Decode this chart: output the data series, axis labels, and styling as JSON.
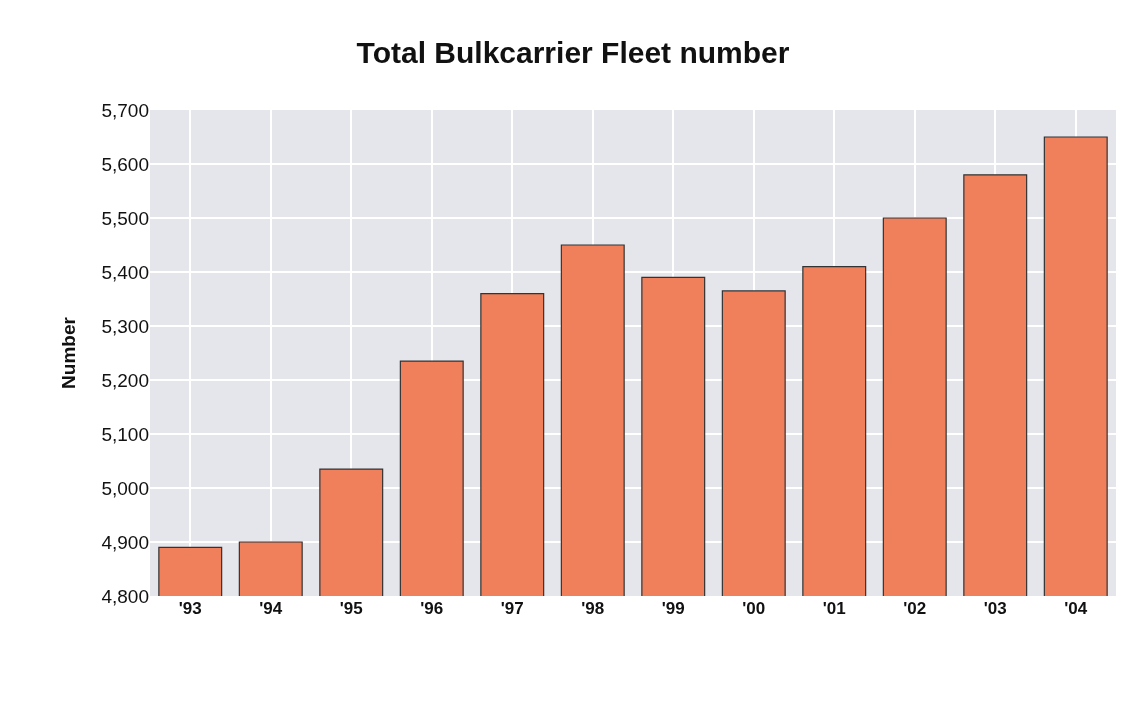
{
  "chart_data": {
    "type": "bar",
    "title": "Total Bulkcarrier Fleet number",
    "ylabel": "Number",
    "categories": [
      "'93",
      "'94",
      "'95",
      "'96",
      "'97",
      "'98",
      "'99",
      "'00",
      "'01",
      "'02",
      "'03",
      "'04"
    ],
    "values": [
      4890,
      4900,
      5035,
      5235,
      5360,
      5450,
      5390,
      5365,
      5410,
      5500,
      5580,
      5650
    ],
    "color": "#f0805c",
    "ylim": [
      4800,
      5700
    ],
    "yticks": [
      {
        "value": 4800,
        "label": "4,800"
      },
      {
        "value": 4900,
        "label": "4,900"
      },
      {
        "value": 5000,
        "label": "5,000"
      },
      {
        "value": 5100,
        "label": "5,100"
      },
      {
        "value": 5200,
        "label": "5,200"
      },
      {
        "value": 5300,
        "label": "5,300"
      },
      {
        "value": 5400,
        "label": "5,400"
      },
      {
        "value": 5500,
        "label": "5,500"
      },
      {
        "value": 5600,
        "label": "5,600"
      },
      {
        "value": 5700,
        "label": "5,700"
      }
    ],
    "grid": true
  }
}
